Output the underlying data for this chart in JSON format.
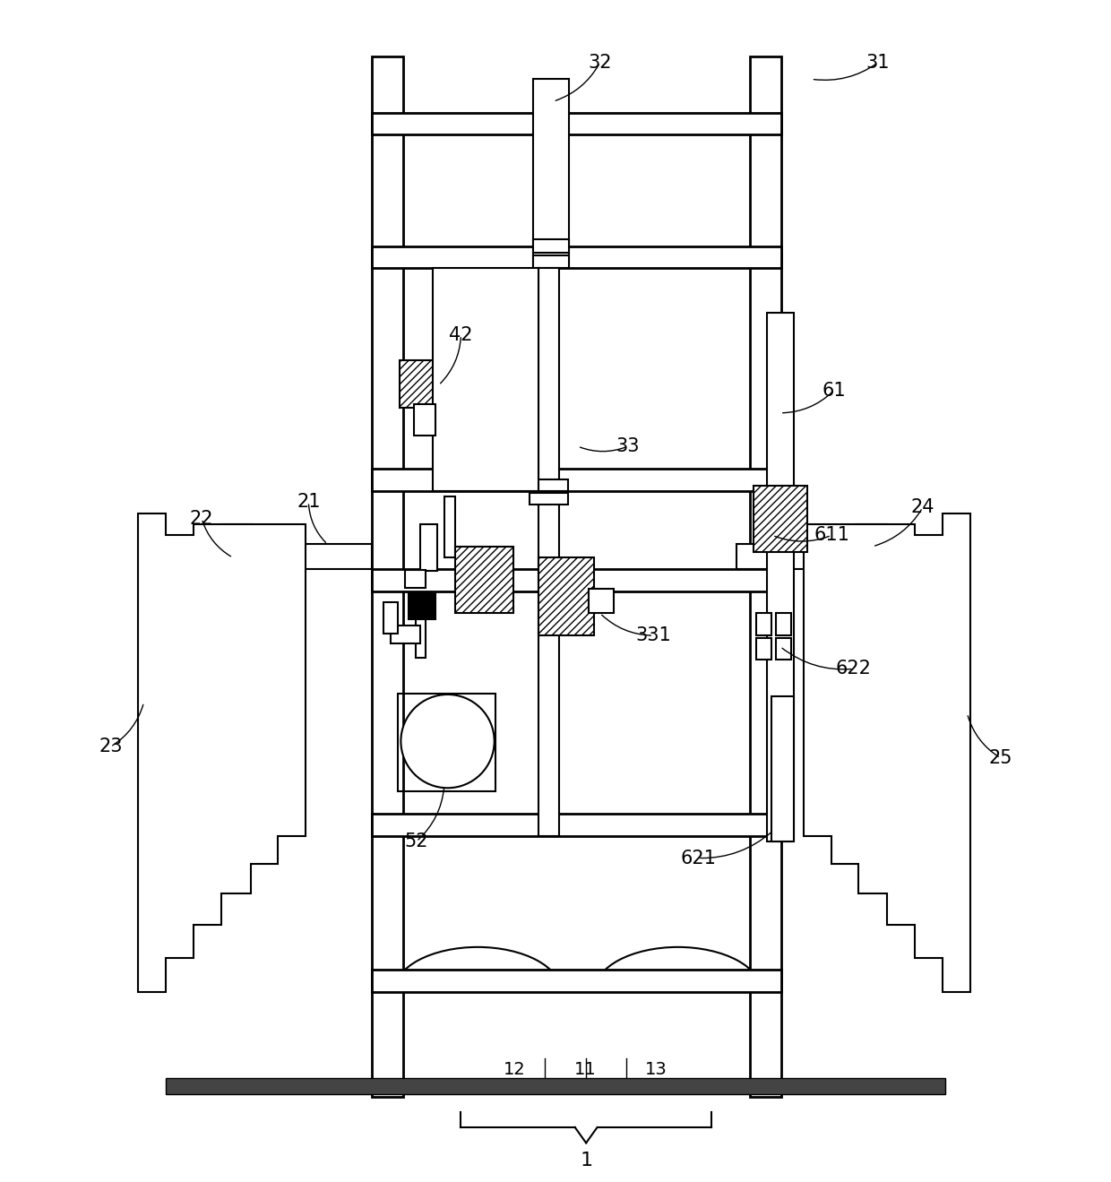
{
  "bg_color": "#ffffff",
  "lc": "#000000",
  "fig_width": 12.4,
  "fig_height": 13.19,
  "dpi": 100
}
